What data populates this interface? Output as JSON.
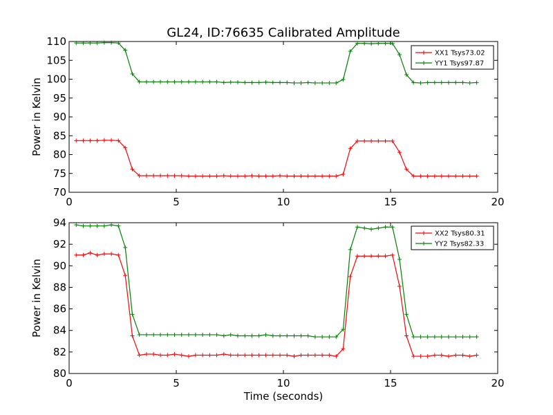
{
  "title": "GL24, ID:76635 Calibrated Amplitude",
  "chart_data": [
    {
      "type": "line",
      "title": "GL24, ID:76635 Calibrated Amplitude",
      "xlabel": "",
      "ylabel": "Power in Kelvin",
      "xlim": [
        0,
        20
      ],
      "ylim": [
        70,
        110
      ],
      "xticks": [
        "0",
        "5",
        "10",
        "15",
        "20"
      ],
      "yticks": [
        "70",
        "75",
        "80",
        "85",
        "90",
        "95",
        "100",
        "105",
        "110"
      ],
      "legend_position": "top-right",
      "grid": false,
      "x": [
        0.33,
        0.66,
        0.98,
        1.31,
        1.64,
        1.97,
        2.3,
        2.62,
        2.95,
        3.28,
        3.61,
        3.94,
        4.26,
        4.59,
        4.92,
        5.25,
        5.58,
        5.9,
        6.23,
        6.56,
        6.89,
        7.22,
        7.54,
        7.87,
        8.2,
        8.53,
        8.86,
        9.18,
        9.51,
        9.84,
        10.17,
        10.5,
        10.82,
        11.15,
        11.48,
        11.81,
        12.14,
        12.46,
        12.79,
        13.12,
        13.45,
        13.78,
        14.1,
        14.43,
        14.76,
        15.09,
        15.42,
        15.74,
        16.07,
        16.4,
        16.73,
        17.06,
        17.38,
        17.71,
        18.04,
        18.37,
        18.7,
        19.02
      ],
      "series": [
        {
          "name": "XX1 Tsys73.02",
          "color": "#ff0000",
          "values": [
            83.7,
            83.7,
            83.7,
            83.7,
            83.8,
            83.8,
            83.7,
            81.8,
            76.1,
            74.4,
            74.4,
            74.4,
            74.4,
            74.4,
            74.4,
            74.4,
            74.3,
            74.3,
            74.3,
            74.3,
            74.3,
            74.4,
            74.3,
            74.3,
            74.3,
            74.4,
            74.3,
            74.3,
            74.3,
            74.4,
            74.3,
            74.3,
            74.3,
            74.3,
            74.3,
            74.3,
            74.3,
            74.3,
            74.8,
            81.6,
            83.6,
            83.6,
            83.6,
            83.6,
            83.6,
            83.6,
            80.6,
            76.1,
            74.3,
            74.3,
            74.3,
            74.3,
            74.3,
            74.3,
            74.3,
            74.3,
            74.3,
            74.3
          ]
        },
        {
          "name": "YY1 Tsys97.87",
          "color": "#008000",
          "values": [
            109.6,
            109.6,
            109.6,
            109.6,
            109.7,
            109.7,
            109.6,
            107.7,
            101.4,
            99.3,
            99.3,
            99.3,
            99.3,
            99.3,
            99.3,
            99.3,
            99.3,
            99.3,
            99.3,
            99.3,
            99.3,
            99.1,
            99.2,
            99.2,
            99.1,
            99.1,
            99.1,
            99.2,
            99.1,
            99.1,
            99.1,
            99.0,
            99.0,
            99.1,
            99.0,
            99.0,
            99.0,
            99.0,
            99.9,
            107.4,
            109.5,
            109.5,
            109.4,
            109.5,
            109.5,
            109.5,
            106.5,
            101.2,
            99.1,
            99.0,
            99.1,
            99.1,
            99.1,
            99.1,
            99.1,
            99.1,
            99.0,
            99.1
          ]
        }
      ]
    },
    {
      "type": "line",
      "title": "",
      "xlabel": "Time (seconds)",
      "ylabel": "Power in Kelvin",
      "xlim": [
        0,
        20
      ],
      "ylim": [
        80,
        94
      ],
      "xticks": [
        "0",
        "5",
        "10",
        "15",
        "20"
      ],
      "yticks": [
        "80",
        "82",
        "84",
        "86",
        "88",
        "90",
        "92",
        "94"
      ],
      "legend_position": "top-right",
      "grid": false,
      "x": [
        0.33,
        0.66,
        0.98,
        1.31,
        1.64,
        1.97,
        2.3,
        2.62,
        2.95,
        3.28,
        3.61,
        3.94,
        4.26,
        4.59,
        4.92,
        5.25,
        5.58,
        5.9,
        6.23,
        6.56,
        6.89,
        7.22,
        7.54,
        7.87,
        8.2,
        8.53,
        8.86,
        9.18,
        9.51,
        9.84,
        10.17,
        10.5,
        10.82,
        11.15,
        11.48,
        11.81,
        12.14,
        12.46,
        12.79,
        13.12,
        13.45,
        13.78,
        14.1,
        14.43,
        14.76,
        15.09,
        15.42,
        15.74,
        16.07,
        16.4,
        16.73,
        17.06,
        17.38,
        17.71,
        18.04,
        18.37,
        18.7,
        19.02
      ],
      "series": [
        {
          "name": "XX2 Tsys80.31",
          "color": "#ff0000",
          "values": [
            91.0,
            91.0,
            91.2,
            91.0,
            91.1,
            91.1,
            91.0,
            89.1,
            83.5,
            81.7,
            81.8,
            81.8,
            81.7,
            81.7,
            81.8,
            81.7,
            81.6,
            81.7,
            81.7,
            81.7,
            81.7,
            81.8,
            81.7,
            81.7,
            81.7,
            81.7,
            81.7,
            81.7,
            81.7,
            81.7,
            81.7,
            81.6,
            81.7,
            81.7,
            81.7,
            81.7,
            81.7,
            81.6,
            82.3,
            89.0,
            90.9,
            90.9,
            90.9,
            90.9,
            90.9,
            91.0,
            88.1,
            83.5,
            81.6,
            81.6,
            81.6,
            81.7,
            81.7,
            81.6,
            81.7,
            81.7,
            81.6,
            81.7
          ]
        },
        {
          "name": "YY2 Tsys82.33",
          "color": "#008000",
          "values": [
            93.8,
            93.7,
            93.7,
            93.7,
            93.7,
            93.8,
            93.7,
            91.7,
            85.5,
            83.6,
            83.6,
            83.6,
            83.6,
            83.6,
            83.6,
            83.6,
            83.6,
            83.6,
            83.6,
            83.6,
            83.6,
            83.5,
            83.6,
            83.5,
            83.5,
            83.5,
            83.5,
            83.6,
            83.5,
            83.5,
            83.5,
            83.5,
            83.5,
            83.5,
            83.4,
            83.4,
            83.4,
            83.4,
            84.1,
            91.5,
            93.6,
            93.5,
            93.4,
            93.5,
            93.6,
            93.6,
            90.6,
            85.5,
            83.4,
            83.4,
            83.4,
            83.4,
            83.4,
            83.4,
            83.4,
            83.4,
            83.4,
            83.4
          ]
        }
      ]
    }
  ]
}
